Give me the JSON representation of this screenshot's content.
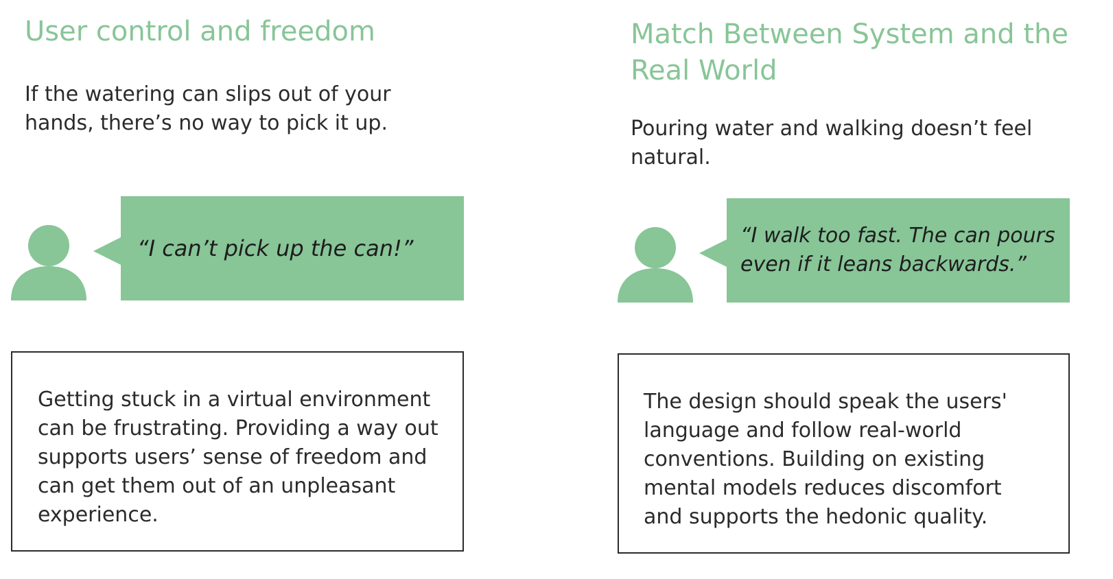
{
  "panels": [
    {
      "title_lines": [
        "User control and freedom"
      ],
      "problem_lines": [
        "If the watering can slips out of your",
        "hands, there’s no way to pick it up."
      ],
      "quote_lines": [
        "“I can’t pick up the can!”"
      ],
      "insight_lines": [
        "Getting stuck in a virtual environment",
        "can be frustrating. Providing a way out",
        "supports users’ sense of freedom and",
        "can get them out of an unpleasant",
        "experience."
      ]
    },
    {
      "title_lines": [
        "Match Between System and the",
        "Real World"
      ],
      "problem_lines": [
        "Pouring water and walking doesn’t feel",
        "natural."
      ],
      "quote_lines": [
        "“I walk too fast. The can pours",
        "even if it leans backwards.”"
      ],
      "insight_lines": [
        "The design should speak the users'",
        "language and follow real-world",
        "conventions. Building on existing",
        "mental models reduces discomfort",
        "and supports the hedonic quality."
      ]
    }
  ],
  "colors": {
    "accent": "#88c597",
    "text": "#2b2b2b",
    "border": "#2b2b2b"
  },
  "icons": [
    "user-avatar-icon",
    "speech-bubble"
  ]
}
